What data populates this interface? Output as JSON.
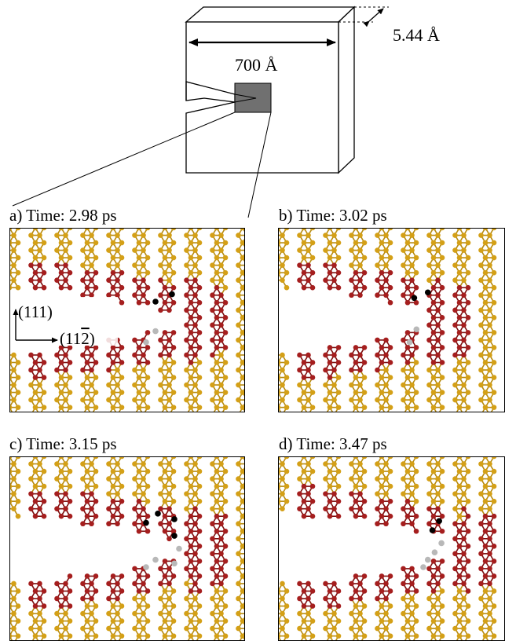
{
  "schematic": {
    "width_label": "700 Å",
    "thickness_label": "5.44 Å"
  },
  "panels": [
    {
      "label": "a) Time: 2.98 ps",
      "black_atoms": [
        [
          0.69,
          0.36
        ],
        [
          0.62,
          0.4
        ]
      ],
      "grey_atoms": [
        [
          0.62,
          0.56
        ],
        [
          0.58,
          0.62
        ]
      ],
      "tip": 0.72,
      "opening": 0.34
    },
    {
      "label": "b) Time: 3.02 ps",
      "black_atoms": [
        [
          0.66,
          0.35
        ],
        [
          0.6,
          0.38
        ]
      ],
      "grey_atoms": [
        [
          0.61,
          0.55
        ],
        [
          0.58,
          0.62
        ]
      ],
      "tip": 0.68,
      "opening": 0.36
    },
    {
      "label": "c) Time: 3.15 ps",
      "black_atoms": [
        [
          0.63,
          0.31
        ],
        [
          0.7,
          0.34
        ],
        [
          0.58,
          0.36
        ],
        [
          0.7,
          0.43
        ]
      ],
      "grey_atoms": [
        [
          0.72,
          0.5
        ],
        [
          0.62,
          0.56
        ],
        [
          0.7,
          0.58
        ],
        [
          0.58,
          0.6
        ]
      ],
      "tip": 0.76,
      "opening": 0.36
    },
    {
      "label": "d) Time: 3.47 ps",
      "black_atoms": [
        [
          0.71,
          0.35
        ],
        [
          0.68,
          0.4
        ]
      ],
      "grey_atoms": [
        [
          0.72,
          0.47
        ],
        [
          0.69,
          0.52
        ],
        [
          0.66,
          0.56
        ],
        [
          0.64,
          0.6
        ]
      ],
      "tip": 0.8,
      "opening": 0.38
    }
  ],
  "axes": {
    "vertical": "(111)",
    "horizontal": "(11",
    "horizontal_bar": "2",
    "horizontal_close": ")"
  },
  "colors": {
    "bulk_atom": "#d4a017",
    "bulk_bond": "#b58a12",
    "deformed_atom": "#a51e1e",
    "deformed_bond": "#7a1010",
    "marker_black": "#000000",
    "marker_grey": "#b8b8b8",
    "schematic_notch": "#707070"
  }
}
